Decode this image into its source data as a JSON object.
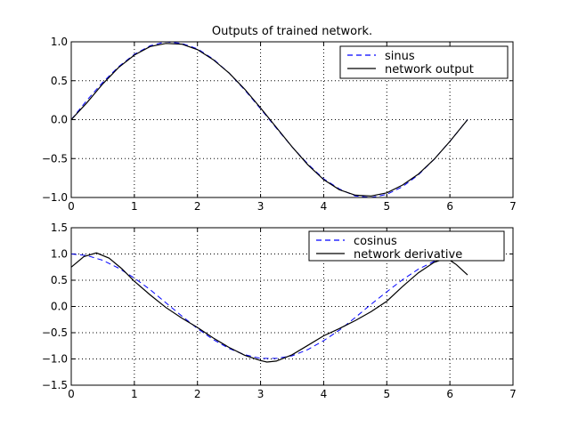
{
  "chart_data": [
    {
      "type": "line",
      "title": "Outputs of trained network.",
      "xlabel": "",
      "ylabel": "",
      "xlim": [
        0,
        7
      ],
      "ylim": [
        -1.0,
        1.0
      ],
      "xticks": [
        "0",
        "1",
        "2",
        "3",
        "4",
        "5",
        "6",
        "7"
      ],
      "yticks": [
        "1.0",
        "0.5",
        "0.0",
        "−0.5",
        "−1.0"
      ],
      "grid": true,
      "legend": "top-right",
      "series": [
        {
          "name": "sinus",
          "style": "dashed",
          "color": "#0000ff",
          "x": [
            0,
            0.25,
            0.5,
            0.75,
            1.0,
            1.25,
            1.5,
            1.75,
            2.0,
            2.25,
            2.5,
            2.75,
            3.0,
            3.25,
            3.5,
            3.75,
            4.0,
            4.25,
            4.5,
            4.75,
            5.0,
            5.25,
            5.5,
            5.75,
            6.0,
            6.28
          ],
          "y": [
            0.0,
            0.25,
            0.48,
            0.68,
            0.84,
            0.95,
            1.0,
            0.98,
            0.91,
            0.78,
            0.6,
            0.38,
            0.14,
            -0.11,
            -0.35,
            -0.57,
            -0.76,
            -0.89,
            -0.98,
            -1.0,
            -0.96,
            -0.86,
            -0.71,
            -0.51,
            -0.28,
            0.0
          ]
        },
        {
          "name": "network output",
          "style": "solid",
          "color": "#000000",
          "x": [
            0,
            0.25,
            0.5,
            0.75,
            1.0,
            1.25,
            1.5,
            1.75,
            2.0,
            2.25,
            2.5,
            2.75,
            3.0,
            3.25,
            3.5,
            3.75,
            4.0,
            4.25,
            4.5,
            4.75,
            5.0,
            5.25,
            5.5,
            5.75,
            6.0,
            6.28
          ],
          "y": [
            0.0,
            0.22,
            0.46,
            0.67,
            0.83,
            0.94,
            0.98,
            0.97,
            0.9,
            0.77,
            0.6,
            0.39,
            0.15,
            -0.1,
            -0.35,
            -0.58,
            -0.77,
            -0.9,
            -0.97,
            -0.98,
            -0.94,
            -0.84,
            -0.7,
            -0.51,
            -0.28,
            0.0
          ]
        }
      ]
    },
    {
      "type": "line",
      "title": "",
      "xlabel": "",
      "ylabel": "",
      "xlim": [
        0,
        7
      ],
      "ylim": [
        -1.5,
        1.5
      ],
      "xticks": [
        "0",
        "1",
        "2",
        "3",
        "4",
        "5",
        "6",
        "7"
      ],
      "yticks": [
        "1.5",
        "1.0",
        "0.5",
        "0.0",
        "−0.5",
        "−1.0",
        "−1.5"
      ],
      "grid": true,
      "legend": "top-right",
      "series": [
        {
          "name": "cosinus",
          "style": "dashed",
          "color": "#0000ff",
          "x": [
            0,
            0.25,
            0.5,
            0.75,
            1.0,
            1.25,
            1.5,
            1.75,
            2.0,
            2.25,
            2.5,
            2.75,
            3.0,
            3.25,
            3.5,
            3.75,
            4.0,
            4.25,
            4.5,
            4.75,
            5.0,
            5.25,
            5.5,
            5.75,
            6.0,
            6.28
          ],
          "y": [
            1.0,
            0.97,
            0.88,
            0.73,
            0.54,
            0.32,
            0.07,
            -0.18,
            -0.42,
            -0.63,
            -0.8,
            -0.92,
            -0.99,
            -0.99,
            -0.94,
            -0.82,
            -0.65,
            -0.45,
            -0.21,
            0.04,
            0.28,
            0.51,
            0.71,
            0.86,
            0.96,
            1.0
          ]
        },
        {
          "name": "network derivative",
          "style": "solid",
          "color": "#000000",
          "x": [
            0,
            0.2,
            0.4,
            0.6,
            0.8,
            1.0,
            1.25,
            1.5,
            1.75,
            2.0,
            2.25,
            2.5,
            2.75,
            3.0,
            3.1,
            3.25,
            3.5,
            3.75,
            4.0,
            4.25,
            4.5,
            4.75,
            5.0,
            5.25,
            5.5,
            5.75,
            5.95,
            6.1,
            6.28
          ],
          "y": [
            0.75,
            0.95,
            1.02,
            0.92,
            0.72,
            0.48,
            0.22,
            -0.02,
            -0.22,
            -0.4,
            -0.6,
            -0.78,
            -0.93,
            -1.03,
            -1.06,
            -1.04,
            -0.92,
            -0.74,
            -0.56,
            -0.42,
            -0.27,
            -0.1,
            0.1,
            0.38,
            0.64,
            0.84,
            0.92,
            0.8,
            0.6
          ]
        }
      ]
    }
  ]
}
